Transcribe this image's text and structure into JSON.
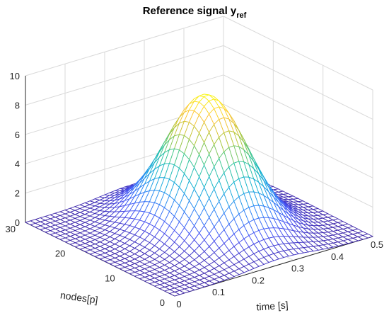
{
  "chart_data": {
    "type": "surface",
    "title": "Reference signal y",
    "title_subscript": "ref",
    "xlabel": "time [s]",
    "ylabel": "nodes[p]",
    "zlabel": "",
    "xlim": [
      0,
      0.5
    ],
    "ylim": [
      0,
      30
    ],
    "zlim": [
      0,
      10
    ],
    "xticks": [
      "0",
      "0.1",
      "0.2",
      "0.3",
      "0.4",
      "0.5"
    ],
    "yticks": [
      "0",
      "10",
      "20",
      "30"
    ],
    "zticks": [
      "0",
      "2",
      "4",
      "6",
      "8",
      "10"
    ],
    "grid": true,
    "colormap": "parula",
    "surface": {
      "function": "z = A * exp(-((t - t0)^2 / (2*st^2)) - ((p - p0)^2 / (2*sp^2)))",
      "A": 9.0,
      "t0": 0.27,
      "p0": 15,
      "st": 0.075,
      "sp": 6.0,
      "t_samples": 41,
      "p_samples": 31
    }
  }
}
